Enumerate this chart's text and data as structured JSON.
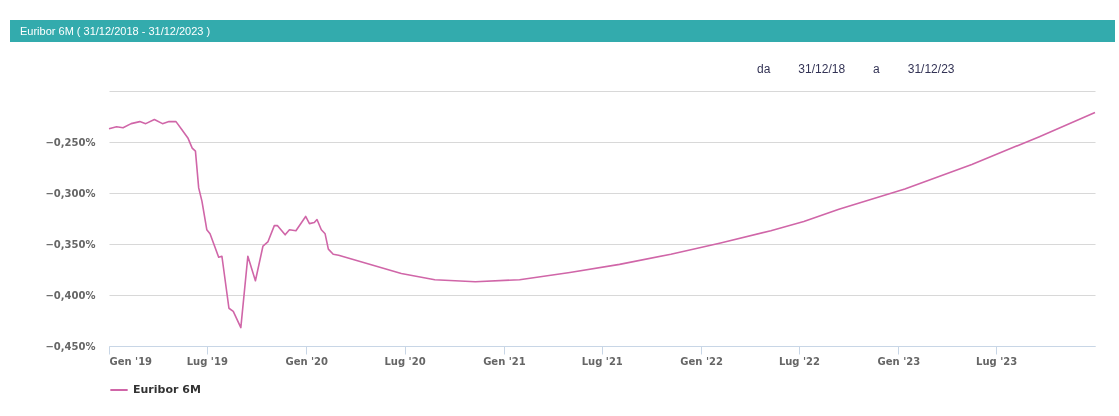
{
  "chart_data": {
    "type": "line",
    "title": "Euribor 6M ( 31/12/2018 - 31/12/2023 )",
    "annotations": [
      "da",
      "31/12/18",
      "a",
      "31/12/23"
    ],
    "x": [
      "2019-01-01",
      "2019-01-15",
      "2019-01-27",
      "2019-02-11",
      "2019-02-27",
      "2019-03-10",
      "2019-03-26",
      "2019-04-10",
      "2019-04-22",
      "2019-05-05",
      "2019-05-16",
      "2019-05-27",
      "2019-06-04",
      "2019-06-10",
      "2019-06-16",
      "2019-06-22",
      "2019-07-01",
      "2019-07-07",
      "2019-07-23",
      "2019-07-29",
      "2019-08-11",
      "2019-08-19",
      "2019-09-02",
      "2019-09-15",
      "2019-09-29",
      "2019-10-13",
      "2019-10-22",
      "2019-11-03",
      "2019-11-09",
      "2019-11-23",
      "2019-12-01",
      "2019-12-13",
      "2019-12-31",
      "2020-01-07",
      "2020-01-16",
      "2020-01-21",
      "2020-01-29",
      "2020-02-05",
      "2020-02-11",
      "2020-02-20",
      "2020-03-01",
      "2020-06-25",
      "2020-08-26",
      "2020-11-09",
      "2021-01-30",
      "2021-05-03",
      "2021-08-03",
      "2021-11-06",
      "2022-02-06",
      "2022-05-10",
      "2022-07-10",
      "2022-09-13",
      "2023-01-13",
      "2023-05-17",
      "2023-09-18",
      "2023-12-31"
    ],
    "series": [
      {
        "name": "Euribor 6M",
        "color": "#d066a8",
        "values": [
          -0.237,
          -0.235,
          -0.236,
          -0.232,
          -0.23,
          -0.232,
          -0.228,
          -0.232,
          -0.23,
          -0.23,
          -0.238,
          -0.246,
          -0.256,
          -0.259,
          -0.295,
          -0.308,
          -0.336,
          -0.34,
          -0.363,
          -0.362,
          -0.413,
          -0.416,
          -0.432,
          -0.362,
          -0.386,
          -0.352,
          -0.348,
          -0.332,
          -0.332,
          -0.341,
          -0.336,
          -0.337,
          -0.323,
          -0.33,
          -0.329,
          -0.326,
          -0.336,
          -0.34,
          -0.355,
          -0.36,
          -0.361,
          -0.379,
          -0.385,
          -0.387,
          -0.385,
          -0.378,
          -0.37,
          -0.36,
          -0.349,
          -0.337,
          -0.328,
          -0.316,
          -0.296,
          -0.272,
          -0.245,
          -0.221
        ]
      }
    ],
    "xlim": [
      "2019-01-01",
      "2023-12-31"
    ],
    "xticks": [
      {
        "value": "2019-01-01",
        "label": "Gen '19"
      },
      {
        "value": "2019-07-01",
        "label": "Lug '19"
      },
      {
        "value": "2020-01-01",
        "label": "Gen '20"
      },
      {
        "value": "2020-07-01",
        "label": "Lug '20"
      },
      {
        "value": "2021-01-01",
        "label": "Gen '21"
      },
      {
        "value": "2021-07-01",
        "label": "Lug '21"
      },
      {
        "value": "2022-01-01",
        "label": "Gen '22"
      },
      {
        "value": "2022-07-01",
        "label": "Lug '22"
      },
      {
        "value": "2023-01-01",
        "label": "Gen '23"
      },
      {
        "value": "2023-07-01",
        "label": "Lug '23"
      }
    ],
    "ylim": [
      -0.45,
      -0.2
    ],
    "yticks": [
      {
        "value": -0.45,
        "label": "−0,450%"
      },
      {
        "value": -0.4,
        "label": "−0,400%"
      },
      {
        "value": -0.35,
        "label": "−0,350%"
      },
      {
        "value": -0.3,
        "label": "−0,300%"
      },
      {
        "value": -0.25,
        "label": "−0,250%"
      },
      {
        "value": -0.2,
        "label": null
      }
    ],
    "grid": "y",
    "legend": "bottom",
    "marker": "none",
    "line_style": "solid"
  }
}
